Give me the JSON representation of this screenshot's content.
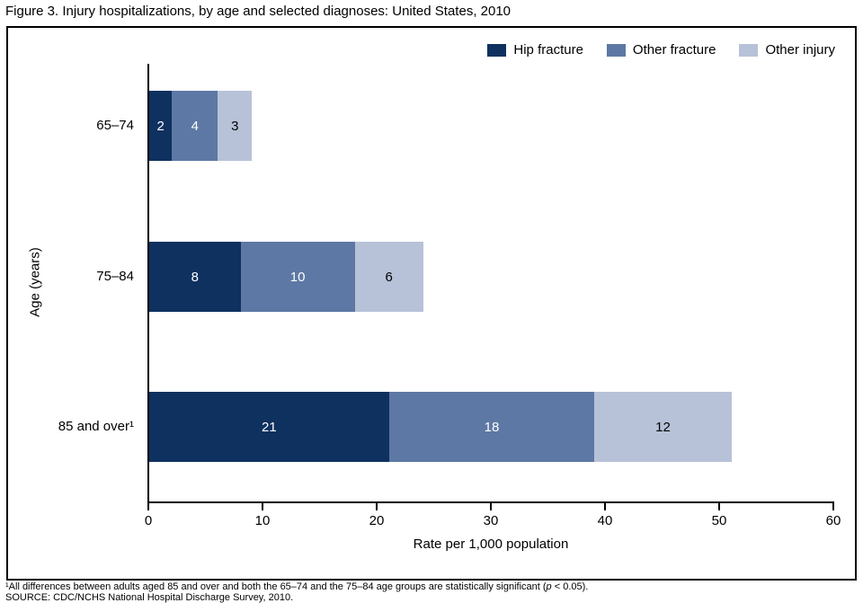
{
  "figure": {
    "title": "Figure 3. Injury hospitalizations, by age and selected diagnoses: United States, 2010",
    "footnote1": {
      "prefix": "¹All differences between adults aged 85 and over and both the 65–74 and the 75–84 age groups are statistically significant (",
      "italic": "p",
      "suffix": " < 0.05)."
    },
    "source": "SOURCE: CDC/NCHS National Hospital Discharge Survey, 2010."
  },
  "chart_data": {
    "type": "bar",
    "orientation": "horizontal",
    "stacked": true,
    "title": "Figure 3. Injury hospitalizations, by age and selected diagnoses: United States, 2010",
    "categories": [
      "65–74",
      "75–84",
      "85 and over¹"
    ],
    "series": [
      {
        "name": "Hip fracture",
        "color": "#0e315f",
        "label_color": "#ffffff",
        "values": [
          2,
          8,
          21
        ]
      },
      {
        "name": "Other fracture",
        "color": "#5d78a4",
        "label_color": "#ffffff",
        "values": [
          4,
          10,
          18
        ]
      },
      {
        "name": "Other injury",
        "color": "#b7c2d8",
        "label_color": "#000000",
        "values": [
          3,
          6,
          12
        ]
      }
    ],
    "totals": [
      9,
      24,
      51
    ],
    "xlabel": "Rate per 1,000 population",
    "ylabel": "Age (years)",
    "xlim": [
      0,
      60
    ],
    "xticks": [
      0,
      10,
      20,
      30,
      40,
      50,
      60
    ],
    "legend_position": "top-right",
    "grid": false
  }
}
